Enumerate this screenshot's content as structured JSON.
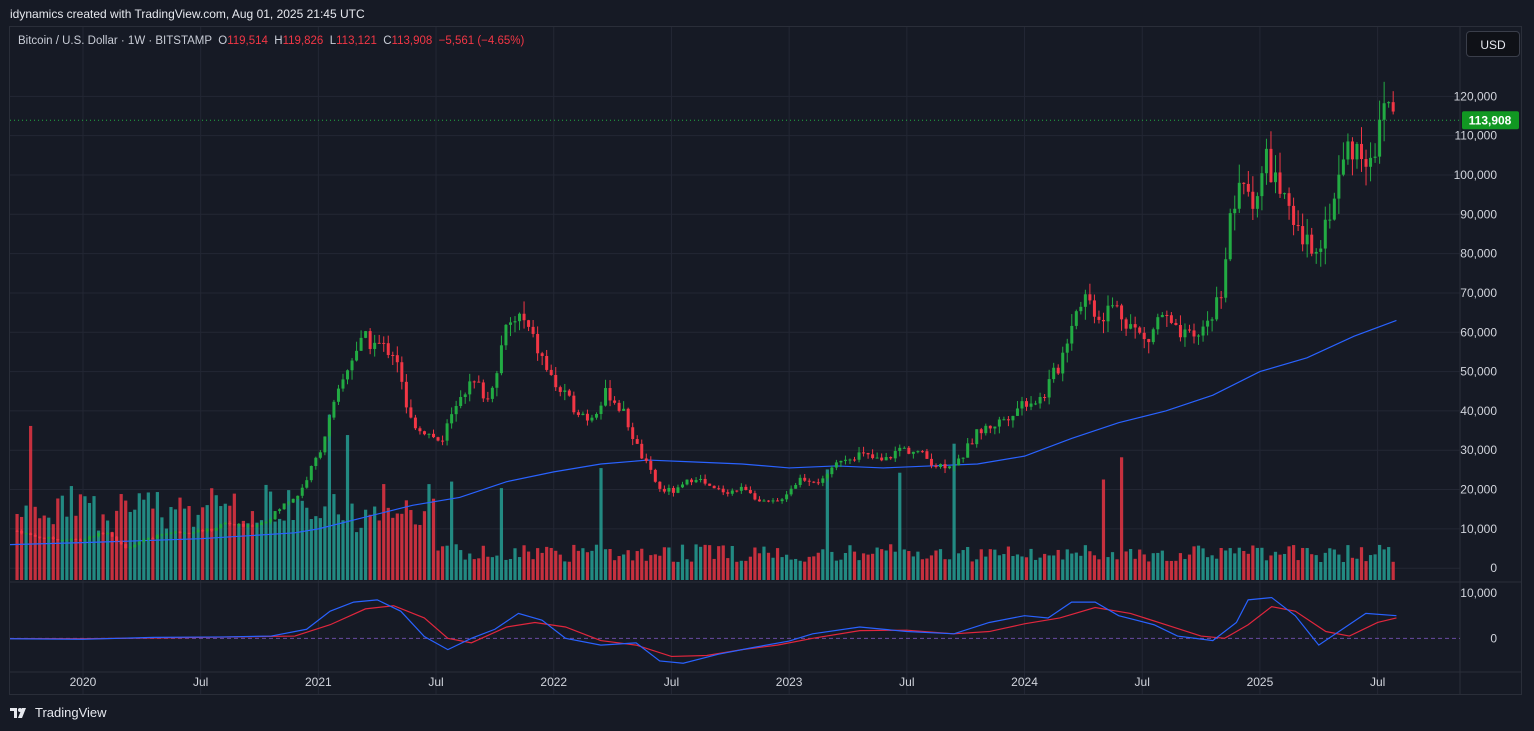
{
  "header": {
    "attribution": "idynamics created with TradingView.com, Aug 01, 2025 21:45 UTC"
  },
  "legend": {
    "symbol": "Bitcoin / U.S. Dollar · 1W · BITSTAMP",
    "o_label": "O",
    "o_value": "119,514",
    "h_label": "H",
    "h_value": "119,826",
    "l_label": "L",
    "l_value": "113,121",
    "c_label": "C",
    "c_value": "113,908",
    "change": "−5,561 (−4.65%)"
  },
  "currency_button": "USD",
  "footer": {
    "brand": "TradingView"
  },
  "colors": {
    "up": "#26a69a",
    "up_candle": "#22ab43",
    "down": "#f23645",
    "ma": "#2962ff",
    "macd_signal": "#e0263d",
    "price_tag": "#119822"
  },
  "chart_data": {
    "type": "candlestick",
    "instrument": "BTC/USD",
    "interval": "1W",
    "last_price": 113908,
    "last_price_label": "113,908",
    "price_axis": {
      "range": [
        -3000,
        130000
      ],
      "ticks": [
        0,
        10000,
        20000,
        30000,
        40000,
        50000,
        60000,
        70000,
        80000,
        90000,
        100000,
        110000,
        120000
      ],
      "tick_labels": [
        "0",
        "10,000",
        "20,000",
        "30,000",
        "40,000",
        "50,000",
        "60,000",
        "70,000",
        "80,000",
        "90,000",
        "100,000",
        "110,000",
        "120,000"
      ]
    },
    "time_axis": {
      "range": [
        2019.69,
        2025.85
      ],
      "ticks": [
        2020.0,
        2020.5,
        2021.0,
        2021.5,
        2022.0,
        2022.5,
        2023.0,
        2023.5,
        2024.0,
        2024.5,
        2025.0,
        2025.5
      ],
      "tick_labels": [
        "2020",
        "Jul",
        "2021",
        "Jul",
        "2022",
        "Jul",
        "2023",
        "Jul",
        "2024",
        "Jul",
        "2025",
        "Jul"
      ]
    },
    "price_series": [
      [
        2019.72,
        9500
      ],
      [
        2019.8,
        8000
      ],
      [
        2019.9,
        7300
      ],
      [
        2020.0,
        7200
      ],
      [
        2020.1,
        9500
      ],
      [
        2020.18,
        5000
      ],
      [
        2020.25,
        6800
      ],
      [
        2020.35,
        9000
      ],
      [
        2020.45,
        9300
      ],
      [
        2020.55,
        9800
      ],
      [
        2020.6,
        11500
      ],
      [
        2020.7,
        10500
      ],
      [
        2020.78,
        12000
      ],
      [
        2020.85,
        16000
      ],
      [
        2020.92,
        19000
      ],
      [
        2021.0,
        29000
      ],
      [
        2021.05,
        38000
      ],
      [
        2021.1,
        47000
      ],
      [
        2021.15,
        55000
      ],
      [
        2021.2,
        58000
      ],
      [
        2021.28,
        56000
      ],
      [
        2021.33,
        55000
      ],
      [
        2021.38,
        38000
      ],
      [
        2021.45,
        35000
      ],
      [
        2021.52,
        32000
      ],
      [
        2021.6,
        45000
      ],
      [
        2021.67,
        47000
      ],
      [
        2021.72,
        43000
      ],
      [
        2021.8,
        61000
      ],
      [
        2021.86,
        64000
      ],
      [
        2021.92,
        57000
      ],
      [
        2022.0,
        47000
      ],
      [
        2022.07,
        42000
      ],
      [
        2022.15,
        38000
      ],
      [
        2022.23,
        45000
      ],
      [
        2022.3,
        39000
      ],
      [
        2022.36,
        30000
      ],
      [
        2022.45,
        20000
      ],
      [
        2022.52,
        19500
      ],
      [
        2022.6,
        23500
      ],
      [
        2022.67,
        20000
      ],
      [
        2022.75,
        19500
      ],
      [
        2022.82,
        20500
      ],
      [
        2022.88,
        16500
      ],
      [
        2022.95,
        16800
      ],
      [
        2023.05,
        23000
      ],
      [
        2023.15,
        22000
      ],
      [
        2023.22,
        28000
      ],
      [
        2023.3,
        29000
      ],
      [
        2023.4,
        27000
      ],
      [
        2023.47,
        30500
      ],
      [
        2023.55,
        29500
      ],
      [
        2023.63,
        26000
      ],
      [
        2023.72,
        27000
      ],
      [
        2023.8,
        34500
      ],
      [
        2023.9,
        37500
      ],
      [
        2024.0,
        42500
      ],
      [
        2024.07,
        43000
      ],
      [
        2024.15,
        52000
      ],
      [
        2024.2,
        63000
      ],
      [
        2024.25,
        70000
      ],
      [
        2024.32,
        64000
      ],
      [
        2024.38,
        67000
      ],
      [
        2024.45,
        62000
      ],
      [
        2024.52,
        57000
      ],
      [
        2024.58,
        65000
      ],
      [
        2024.65,
        59000
      ],
      [
        2024.72,
        58000
      ],
      [
        2024.78,
        63000
      ],
      [
        2024.83,
        69000
      ],
      [
        2024.88,
        91000
      ],
      [
        2024.93,
        97000
      ],
      [
        2024.98,
        94000
      ],
      [
        2025.03,
        104000
      ],
      [
        2025.08,
        97000
      ],
      [
        2025.14,
        86000
      ],
      [
        2025.2,
        82000
      ],
      [
        2025.26,
        84000
      ],
      [
        2025.32,
        96000
      ],
      [
        2025.38,
        108000
      ],
      [
        2025.45,
        105000
      ],
      [
        2025.5,
        108000
      ],
      [
        2025.53,
        118000
      ],
      [
        2025.56,
        119500
      ],
      [
        2025.58,
        113908
      ]
    ],
    "moving_average_series": [
      [
        2019.69,
        6000
      ],
      [
        2020.0,
        6500
      ],
      [
        2020.5,
        7500
      ],
      [
        2020.9,
        9000
      ],
      [
        2021.0,
        10000
      ],
      [
        2021.2,
        13000
      ],
      [
        2021.4,
        16000
      ],
      [
        2021.6,
        18000
      ],
      [
        2021.8,
        22000
      ],
      [
        2022.0,
        24500
      ],
      [
        2022.2,
        26500
      ],
      [
        2022.4,
        27500
      ],
      [
        2022.6,
        27000
      ],
      [
        2022.8,
        26500
      ],
      [
        2023.0,
        25500
      ],
      [
        2023.2,
        26000
      ],
      [
        2023.4,
        25500
      ],
      [
        2023.6,
        26000
      ],
      [
        2023.8,
        26500
      ],
      [
        2024.0,
        28500
      ],
      [
        2024.2,
        33000
      ],
      [
        2024.4,
        37000
      ],
      [
        2024.6,
        40000
      ],
      [
        2024.8,
        44000
      ],
      [
        2025.0,
        50000
      ],
      [
        2025.2,
        53500
      ],
      [
        2025.4,
        59000
      ],
      [
        2025.58,
        63000
      ]
    ],
    "volume_panel": {
      "max": 100000
    },
    "macd_panel": {
      "range": [
        -7000,
        12000
      ],
      "ticks": [
        0,
        10000
      ],
      "tick_labels": [
        "0",
        "10,000"
      ],
      "macd": [
        [
          2019.69,
          -100
        ],
        [
          2020.0,
          -200
        ],
        [
          2020.3,
          200
        ],
        [
          2020.6,
          300
        ],
        [
          2020.8,
          500
        ],
        [
          2020.95,
          2000
        ],
        [
          2021.05,
          6000
        ],
        [
          2021.15,
          8000
        ],
        [
          2021.25,
          8500
        ],
        [
          2021.35,
          6000
        ],
        [
          2021.45,
          400
        ],
        [
          2021.55,
          -2500
        ],
        [
          2021.65,
          0
        ],
        [
          2021.75,
          2000
        ],
        [
          2021.85,
          5500
        ],
        [
          2021.95,
          4000
        ],
        [
          2022.05,
          0
        ],
        [
          2022.2,
          -1500
        ],
        [
          2022.35,
          -1000
        ],
        [
          2022.45,
          -5000
        ],
        [
          2022.55,
          -5500
        ],
        [
          2022.7,
          -3500
        ],
        [
          2022.85,
          -2000
        ],
        [
          2023.0,
          -600
        ],
        [
          2023.1,
          1000
        ],
        [
          2023.3,
          2500
        ],
        [
          2023.5,
          1500
        ],
        [
          2023.7,
          1000
        ],
        [
          2023.85,
          3500
        ],
        [
          2024.0,
          5000
        ],
        [
          2024.1,
          4500
        ],
        [
          2024.2,
          8000
        ],
        [
          2024.3,
          8000
        ],
        [
          2024.4,
          5000
        ],
        [
          2024.55,
          3000
        ],
        [
          2024.65,
          500
        ],
        [
          2024.8,
          -500
        ],
        [
          2024.9,
          3500
        ],
        [
          2024.95,
          8500
        ],
        [
          2025.05,
          9000
        ],
        [
          2025.15,
          5000
        ],
        [
          2025.25,
          -1500
        ],
        [
          2025.35,
          2000
        ],
        [
          2025.45,
          5500
        ],
        [
          2025.58,
          5000
        ]
      ],
      "signal": [
        [
          2019.69,
          -50
        ],
        [
          2020.0,
          -100
        ],
        [
          2020.5,
          200
        ],
        [
          2020.9,
          500
        ],
        [
          2021.05,
          3000
        ],
        [
          2021.2,
          6500
        ],
        [
          2021.32,
          7200
        ],
        [
          2021.45,
          4500
        ],
        [
          2021.55,
          0
        ],
        [
          2021.65,
          -1000
        ],
        [
          2021.8,
          2500
        ],
        [
          2021.92,
          3500
        ],
        [
          2022.05,
          2500
        ],
        [
          2022.2,
          -500
        ],
        [
          2022.35,
          -1500
        ],
        [
          2022.5,
          -4000
        ],
        [
          2022.65,
          -3800
        ],
        [
          2022.8,
          -2500
        ],
        [
          2022.95,
          -1500
        ],
        [
          2023.1,
          0
        ],
        [
          2023.3,
          1700
        ],
        [
          2023.5,
          1800
        ],
        [
          2023.7,
          1000
        ],
        [
          2023.85,
          1500
        ],
        [
          2024.0,
          3200
        ],
        [
          2024.15,
          4500
        ],
        [
          2024.3,
          6800
        ],
        [
          2024.45,
          5500
        ],
        [
          2024.6,
          3000
        ],
        [
          2024.75,
          500
        ],
        [
          2024.85,
          0
        ],
        [
          2024.95,
          3000
        ],
        [
          2025.05,
          7000
        ],
        [
          2025.15,
          6000
        ],
        [
          2025.28,
          1500
        ],
        [
          2025.38,
          500
        ],
        [
          2025.5,
          3500
        ],
        [
          2025.58,
          4500
        ]
      ]
    }
  }
}
